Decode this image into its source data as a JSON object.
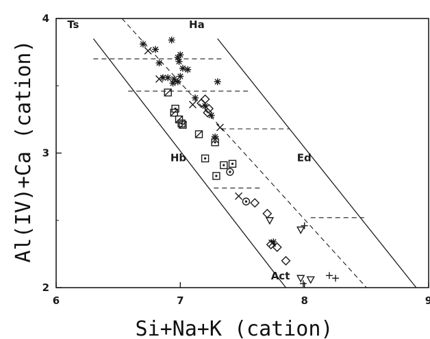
{
  "chart_data": {
    "type": "scatter",
    "xlabel": "Si+Na+K (cation)",
    "ylabel": "Al(IV)+Ca (cation)",
    "xlim": [
      6,
      9
    ],
    "ylim": [
      2,
      4
    ],
    "xticks": [
      "6",
      "7",
      "8",
      "9"
    ],
    "yticks": [
      "2",
      "3",
      "4"
    ],
    "grid": false,
    "legend": "none",
    "field_labels": [
      {
        "text": "Ts",
        "x": 6.09,
        "y": 3.93
      },
      {
        "text": "Ha",
        "x": 7.07,
        "y": 3.93
      },
      {
        "text": "Hb",
        "x": 6.92,
        "y": 2.94
      },
      {
        "text": "Ed",
        "x": 7.94,
        "y": 2.94
      },
      {
        "text": "Act",
        "x": 7.73,
        "y": 2.06
      }
    ],
    "solid_lines": [
      {
        "x": [
          6.3,
          7.85
        ],
        "y": [
          3.85,
          2.0
        ]
      },
      {
        "x": [
          7.3,
          8.9
        ],
        "y": [
          3.85,
          2.0
        ]
      }
    ],
    "dashed_lines": [
      {
        "x": [
          6.53,
          8.5
        ],
        "y": [
          4.0,
          2.0
        ]
      },
      {
        "x": [
          6.3,
          7.33
        ],
        "y": [
          3.7,
          3.7
        ]
      },
      {
        "x": [
          6.58,
          7.55
        ],
        "y": [
          3.46,
          3.46
        ]
      },
      {
        "x": [
          7.33,
          7.88
        ],
        "y": [
          3.18,
          3.18
        ]
      },
      {
        "x": [
          7.27,
          7.66
        ],
        "y": [
          2.74,
          2.74
        ]
      },
      {
        "x": [
          8.05,
          8.48
        ],
        "y": [
          2.52,
          2.52
        ]
      }
    ],
    "series": [
      {
        "marker": "asterisk",
        "points": [
          [
            6.7,
            3.81
          ],
          [
            6.8,
            3.77
          ],
          [
            6.93,
            3.84
          ],
          [
            6.83,
            3.67
          ],
          [
            6.9,
            3.56
          ],
          [
            6.98,
            3.71
          ],
          [
            7.0,
            3.73
          ],
          [
            6.99,
            3.68
          ],
          [
            7.02,
            3.63
          ],
          [
            7.06,
            3.62
          ],
          [
            6.95,
            3.55
          ],
          [
            7.0,
            3.57
          ],
          [
            6.98,
            3.53
          ],
          [
            7.3,
            3.53
          ],
          [
            7.12,
            3.41
          ],
          [
            7.2,
            3.35
          ],
          [
            7.25,
            3.28
          ],
          [
            7.28,
            3.12
          ],
          [
            7.75,
            2.34
          ],
          [
            6.86,
            3.56
          ],
          [
            6.94,
            3.52
          ]
        ]
      },
      {
        "marker": "cross",
        "points": [
          [
            6.74,
            3.76
          ],
          [
            6.83,
            3.55
          ],
          [
            7.1,
            3.36
          ],
          [
            7.32,
            3.19
          ],
          [
            7.47,
            2.68
          ],
          [
            7.74,
            2.33
          ],
          [
            7.28,
            3.1
          ]
        ]
      },
      {
        "marker": "diamond",
        "points": [
          [
            7.2,
            3.4
          ],
          [
            7.17,
            3.37
          ],
          [
            7.23,
            3.33
          ],
          [
            7.22,
            3.3
          ],
          [
            7.6,
            2.63
          ],
          [
            7.7,
            2.55
          ],
          [
            7.73,
            2.32
          ],
          [
            7.85,
            2.2
          ],
          [
            7.78,
            2.3
          ]
        ]
      },
      {
        "marker": "box-hatched",
        "points": [
          [
            6.9,
            3.45
          ],
          [
            6.95,
            3.3
          ],
          [
            6.99,
            3.25
          ],
          [
            7.02,
            3.21
          ],
          [
            7.15,
            3.14
          ]
        ]
      },
      {
        "marker": "box-dot",
        "points": [
          [
            6.96,
            3.33
          ],
          [
            7.01,
            3.22
          ],
          [
            7.28,
            3.08
          ],
          [
            7.2,
            2.96
          ],
          [
            7.35,
            2.91
          ],
          [
            7.42,
            2.92
          ],
          [
            7.29,
            2.83
          ]
        ]
      },
      {
        "marker": "circle-dot",
        "points": [
          [
            7.4,
            2.86
          ],
          [
            7.53,
            2.64
          ]
        ]
      },
      {
        "marker": "triangle-down",
        "points": [
          [
            7.72,
            2.5
          ],
          [
            7.97,
            2.43
          ],
          [
            7.97,
            2.07
          ],
          [
            8.05,
            2.06
          ]
        ]
      },
      {
        "marker": "plus",
        "points": [
          [
            8.0,
            2.46
          ],
          [
            8.2,
            2.09
          ],
          [
            8.25,
            2.07
          ],
          [
            7.99,
            2.03
          ]
        ]
      }
    ]
  }
}
